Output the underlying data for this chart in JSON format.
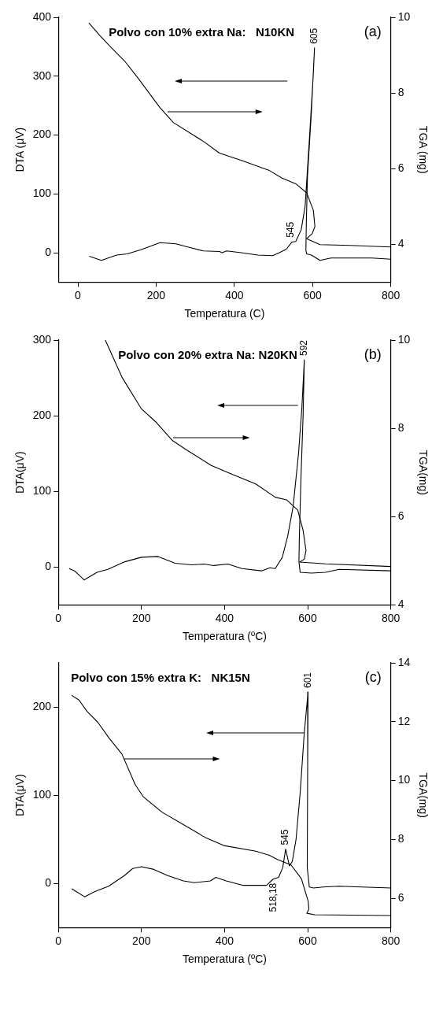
{
  "chart_data": [
    {
      "type": "line",
      "title": "Polvo con 10% extra Na:   N10KN",
      "xlabel": "Temperatura (C)",
      "ylabel": "DTA (μV)",
      "y2label": "TGA (mg)",
      "xlim": [
        -50,
        800
      ],
      "xticks": [
        0,
        200,
        400,
        600,
        800
      ],
      "ylim": [
        -50,
        400
      ],
      "yticks": [
        0,
        100,
        200,
        300,
        400
      ],
      "y2lim": [
        3,
        10
      ],
      "y2ticks": [
        4,
        6,
        8,
        10
      ],
      "grid": false,
      "legend": false,
      "annotations": [
        "(a)",
        {
          "text": "605",
          "x": 605,
          "y": 348
        },
        {
          "text": "545",
          "x": 545,
          "y": 19
        }
      ],
      "series": [
        {
          "color": "#000000",
          "x": [
            29,
            60,
            99,
            126,
            161,
            210,
            251,
            279,
            321,
            362,
            369,
            380,
            418,
            460,
            498,
            515,
            533,
            547,
            557,
            571,
            581,
            592,
            602,
            605,
            597,
            587,
            584,
            583,
            585,
            597,
            619,
            647,
            696,
            751,
            800
          ],
          "values": [
            -6,
            -13,
            -4,
            -2,
            5,
            17,
            15,
            10,
            3,
            2,
            0,
            3,
            0,
            -4,
            -5,
            0,
            6,
            18,
            19,
            39,
            79,
            194,
            304,
            348,
            239,
            129,
            49,
            4,
            -2,
            -4,
            -13,
            -9,
            -9,
            -9,
            -11
          ]
        },
        {
          "color": "#000000",
          "axis": "y2",
          "x": [
            28,
            57,
            85,
            119,
            154,
            210,
            244,
            321,
            362,
            418,
            488,
            522,
            557,
            585,
            602,
            606,
            599,
            585,
            619,
            696,
            800
          ],
          "values": [
            9.85,
            9.51,
            9.2,
            8.85,
            8.39,
            7.61,
            7.22,
            6.72,
            6.41,
            6.22,
            5.96,
            5.75,
            5.6,
            5.36,
            4.9,
            4.47,
            4.28,
            4.15,
            3.99,
            3.97,
            3.93
          ]
        }
      ]
    },
    {
      "type": "line",
      "title": "Polvo con 20% extra Na: N20KN",
      "xlabel": "Temperatura (ºC)",
      "ylabel": "DTA(μV)",
      "y2label": "TGA(mg)",
      "xlim": [
        0,
        800
      ],
      "xticks": [
        0,
        200,
        400,
        600,
        800
      ],
      "ylim": [
        -50,
        300
      ],
      "yticks": [
        0,
        100,
        200,
        300
      ],
      "y2lim": [
        4,
        10
      ],
      "y2ticks": [
        4,
        6,
        8,
        10
      ],
      "grid": false,
      "legend": false,
      "annotations": [
        "(b)",
        {
          "text": "592",
          "x": 592,
          "y": 274
        }
      ],
      "series": [
        {
          "color": "#000000",
          "x": [
            26,
            39,
            62,
            93,
            119,
            160,
            200,
            240,
            281,
            321,
            351,
            374,
            408,
            442,
            489,
            509,
            522,
            539,
            552,
            565,
            578,
            586,
            592,
            589,
            584,
            580,
            579,
            582,
            609,
            643,
            676,
            800
          ],
          "values": [
            -2,
            -5,
            -17,
            -7,
            -3,
            7,
            13,
            14,
            5,
            3,
            4,
            2,
            4,
            -2,
            -5,
            -1,
            -2,
            13,
            41,
            80,
            150,
            210,
            274,
            200,
            120,
            40,
            7,
            -7,
            -8,
            -7,
            -3,
            -5
          ]
        },
        {
          "color": "#000000",
          "axis": "y2",
          "x": [
            113,
            153,
            200,
            234,
            275,
            307,
            368,
            408,
            475,
            522,
            549,
            576,
            589,
            596,
            592,
            581,
            643,
            800
          ],
          "values": [
            10,
            9.16,
            8.44,
            8.15,
            7.72,
            7.52,
            7.16,
            7,
            6.74,
            6.44,
            6.38,
            6.15,
            5.69,
            5.23,
            5.04,
            4.97,
            4.93,
            4.87
          ]
        }
      ]
    },
    {
      "type": "line",
      "title": "Polvo con 15% extra K:   NK15N",
      "xlabel": "Temperatura (ºC)",
      "ylabel": "DTA(μV)",
      "y2label": "TGA(mg)",
      "xlim": [
        0,
        800
      ],
      "xticks": [
        0,
        200,
        400,
        600,
        800
      ],
      "ylim": [
        -50,
        250
      ],
      "yticks": [
        0,
        100,
        200
      ],
      "y2lim": [
        5,
        14
      ],
      "y2ticks": [
        6,
        8,
        10,
        12,
        14
      ],
      "grid": false,
      "legend": false,
      "annotations": [
        "(c)",
        {
          "text": "601",
          "x": 601,
          "y": 217
        },
        {
          "text": "545",
          "x": 547,
          "y": 39
        },
        {
          "text": "518,18",
          "x": 518,
          "y": 5
        }
      ],
      "series": [
        {
          "color": "#000000",
          "x": [
            32,
            43,
            63,
            88,
            121,
            159,
            179,
            200,
            230,
            263,
            301,
            327,
            366,
            379,
            404,
            443,
            501,
            517,
            530,
            540,
            547,
            556,
            563,
            572,
            582,
            592,
            601,
            600,
            599,
            604,
            614,
            637,
            676,
            800
          ],
          "values": [
            -6,
            -9,
            -15,
            -9,
            -3,
            9,
            17,
            19,
            16,
            9,
            3,
            1,
            3,
            7,
            3,
            -2,
            -2,
            5,
            7,
            18,
            39,
            20,
            25,
            50,
            103,
            172,
            217,
            134,
            18,
            -4,
            -5,
            -4,
            -3,
            -5
          ]
        },
        {
          "color": "#000000",
          "axis": "y2",
          "x": [
            32,
            50,
            69,
            95,
            121,
            153,
            185,
            205,
            250,
            301,
            353,
            398,
            475,
            508,
            527,
            560,
            585,
            601,
            603,
            598,
            617,
            800
          ],
          "values": [
            12.9,
            12.73,
            12.35,
            11.98,
            11.46,
            10.9,
            9.86,
            9.44,
            8.92,
            8.5,
            8.07,
            7.79,
            7.6,
            7.46,
            7.32,
            7.13,
            6.66,
            5.91,
            5.63,
            5.49,
            5.44,
            5.41
          ]
        }
      ]
    }
  ]
}
